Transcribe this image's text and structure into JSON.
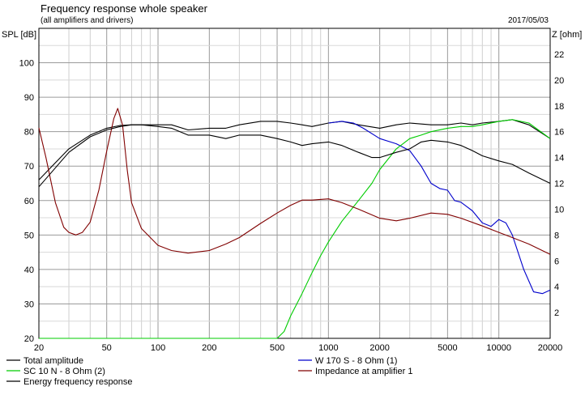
{
  "chart_data": {
    "type": "line",
    "title": "Frequency response whole speaker",
    "subtitle": "(all amplifiers and drivers)",
    "date": "2017/05/03",
    "ylabel": "SPL [dB]",
    "y2label": "Z [ohm]",
    "x_scale": "log",
    "xlim": [
      20,
      20000
    ],
    "ylim": [
      20,
      110
    ],
    "y2lim": [
      0,
      24
    ],
    "grid": true,
    "x_ticks": [
      "20",
      "50",
      "100",
      "200",
      "500",
      "1000",
      "2000",
      "5000",
      "10000",
      "20000"
    ],
    "y_ticks": [
      "20",
      "30",
      "40",
      "50",
      "60",
      "70",
      "80",
      "90",
      "100"
    ],
    "y2_ticks": [
      "2",
      "4",
      "6",
      "8",
      "10",
      "12",
      "14",
      "16",
      "18",
      "20",
      "22"
    ],
    "series": [
      {
        "name": "Total amplitude",
        "color": "#000000",
        "axis": "left",
        "x": [
          20,
          25,
          30,
          40,
          50,
          60,
          70,
          80,
          100,
          120,
          150,
          200,
          250,
          300,
          400,
          500,
          600,
          700,
          800,
          1000,
          1200,
          1500,
          2000,
          2500,
          3000,
          4000,
          5000,
          6000,
          7000,
          8000,
          10000,
          12000,
          15000,
          20000
        ],
        "y": [
          66,
          71,
          75,
          79,
          81,
          81.8,
          82,
          82,
          82,
          82,
          80.5,
          81,
          81,
          82,
          83,
          83,
          82.5,
          82,
          81.5,
          82.5,
          83,
          82,
          81,
          82,
          82.5,
          82,
          82,
          82.5,
          82,
          82.5,
          83,
          83.5,
          82,
          78
        ]
      },
      {
        "name": "W 170 S - 8 Ohm (1)",
        "color": "#0000cc",
        "axis": "left",
        "x": [
          1000,
          1200,
          1400,
          1600,
          2000,
          2500,
          3000,
          3500,
          4000,
          4500,
          5000,
          5500,
          6000,
          7000,
          8000,
          9000,
          10000,
          11000,
          12000,
          14000,
          16000,
          18000,
          20000
        ],
        "y": [
          82.5,
          83,
          82.5,
          81,
          78,
          76.5,
          74.5,
          70,
          65,
          63.5,
          63,
          60,
          59.5,
          57,
          53.5,
          52.5,
          54.5,
          53.5,
          50,
          40,
          33.5,
          33,
          34
        ]
      },
      {
        "name": "SC 10 N - 8 Ohm (2)",
        "color": "#00cc00",
        "axis": "left",
        "x": [
          20,
          100,
          200,
          300,
          400,
          500,
          550,
          600,
          700,
          800,
          900,
          1000,
          1200,
          1500,
          1800,
          2000,
          2500,
          3000,
          3500,
          4000,
          5000,
          6000,
          7000,
          8000,
          10000,
          12000,
          15000,
          20000
        ],
        "y": [
          20,
          20,
          20,
          20,
          20,
          20,
          22,
          26.5,
          33,
          39,
          44,
          48,
          54,
          60,
          65,
          69,
          75,
          78,
          79,
          80,
          81,
          81.5,
          81.5,
          82,
          83,
          83.5,
          82.5,
          78
        ]
      },
      {
        "name": "Impedance at amplifier 1",
        "color": "#800000",
        "axis": "right",
        "x": [
          20,
          22,
          25,
          28,
          30,
          33,
          36,
          40,
          45,
          50,
          55,
          58,
          62,
          66,
          70,
          80,
          100,
          120,
          150,
          200,
          250,
          300,
          400,
          500,
          600,
          700,
          800,
          1000,
          1200,
          1500,
          2000,
          2500,
          3000,
          4000,
          5000,
          6000,
          8000,
          10000,
          12000,
          15000,
          20000
        ],
        "y": [
          16.3,
          14,
          10.5,
          8.6,
          8.2,
          8,
          8.2,
          9,
          11.5,
          14.5,
          17,
          17.8,
          16.5,
          13,
          10.5,
          8.5,
          7.2,
          6.8,
          6.6,
          6.8,
          7.3,
          7.8,
          8.9,
          9.7,
          10.3,
          10.7,
          10.7,
          10.8,
          10.5,
          10,
          9.3,
          9.1,
          9.3,
          9.7,
          9.6,
          9.3,
          8.7,
          8.2,
          7.8,
          7.3,
          6.5
        ]
      },
      {
        "name": "Energy frequency response",
        "color": "#000000",
        "axis": "left",
        "x": [
          20,
          25,
          30,
          40,
          50,
          60,
          70,
          80,
          100,
          120,
          150,
          200,
          250,
          300,
          400,
          500,
          600,
          700,
          800,
          1000,
          1200,
          1500,
          1800,
          2000,
          2500,
          3000,
          3500,
          4000,
          5000,
          6000,
          7000,
          8000,
          10000,
          12000,
          15000,
          20000
        ],
        "y": [
          64,
          69.5,
          74,
          78.5,
          80.5,
          81.5,
          82,
          82,
          81.5,
          81,
          79,
          79,
          78,
          79,
          79,
          78,
          77,
          76,
          76.5,
          77,
          76,
          74,
          72.5,
          72.5,
          74,
          75,
          77,
          77.5,
          77,
          76,
          74.5,
          73,
          71.5,
          70.5,
          68,
          65
        ]
      }
    ]
  }
}
